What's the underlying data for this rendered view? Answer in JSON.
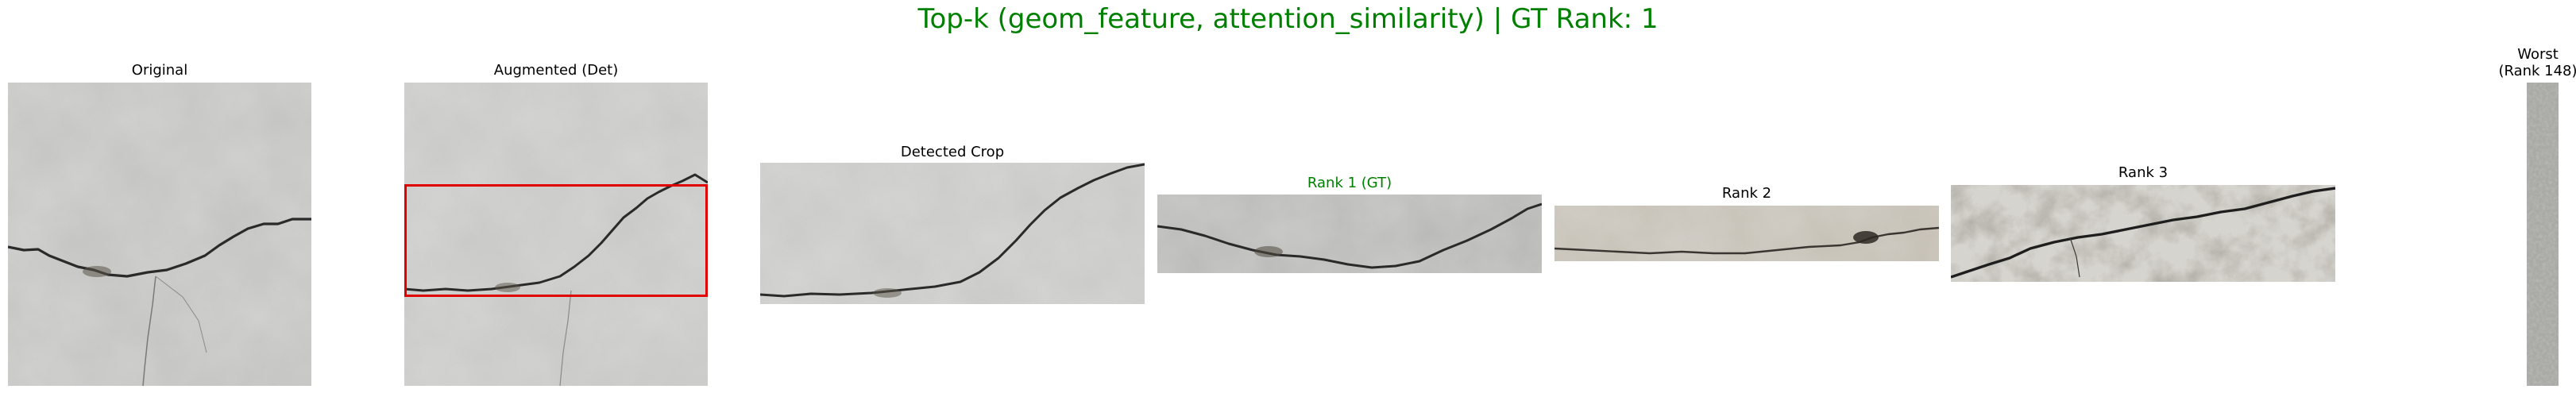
{
  "figure": {
    "title": "Top-k (geom_feature, attention_similarity) | GT Rank: 1",
    "title_color": "#008000"
  },
  "panels": {
    "original": {
      "title": "Original"
    },
    "augmented": {
      "title": "Augmented (Det)",
      "box_color": "#e00000"
    },
    "crop": {
      "title": "Detected Crop"
    },
    "rank1": {
      "title": "Rank 1 (GT)",
      "title_color": "#008000"
    },
    "rank2": {
      "title": "Rank 2"
    },
    "rank3": {
      "title": "Rank 3"
    },
    "worst": {
      "title": "Worst\n(Rank 148)"
    }
  }
}
